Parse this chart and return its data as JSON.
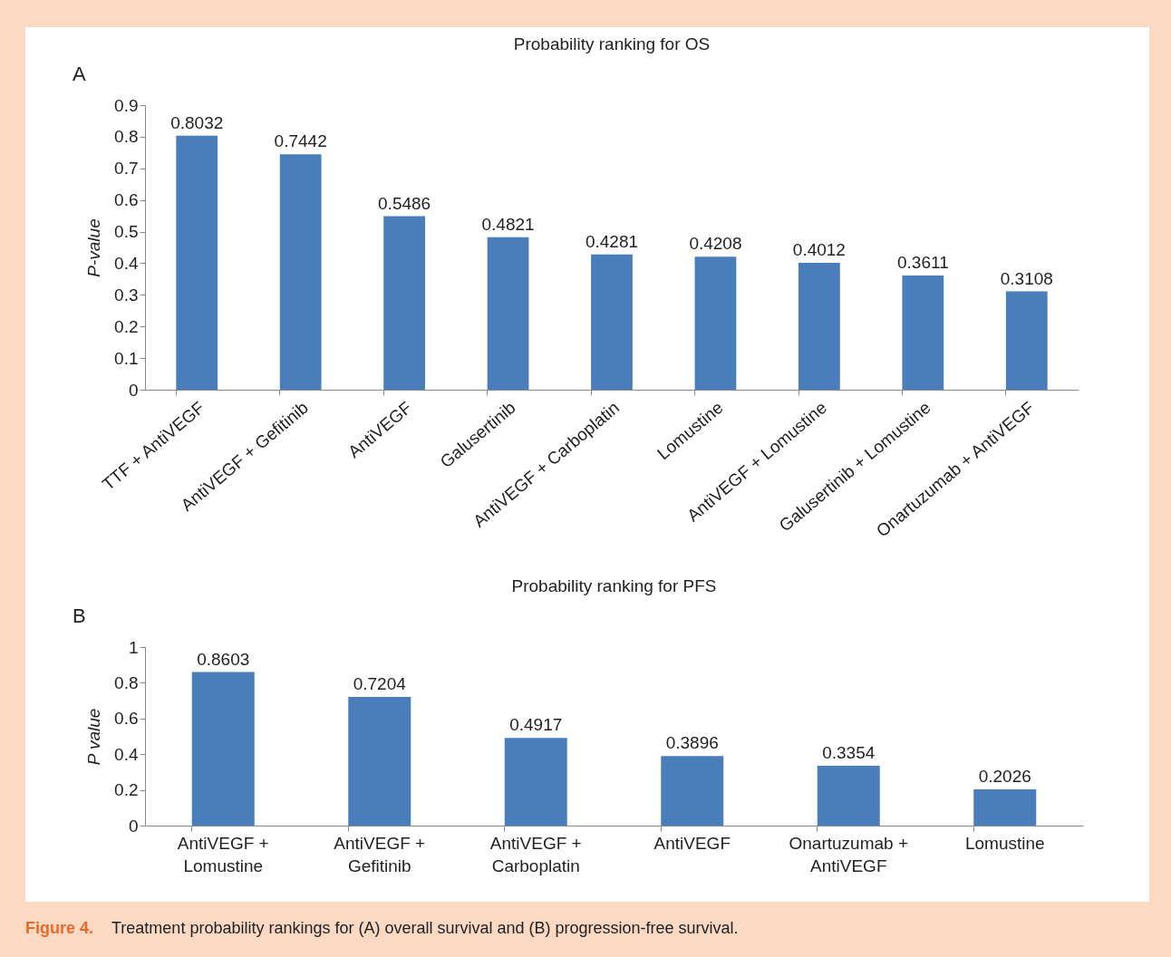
{
  "chart_data": [
    {
      "type": "bar",
      "title": "Probability ranking for OS",
      "ylabel": "P-value",
      "annotations": [
        "A"
      ],
      "categories": [
        "TTF + AntiVEGF",
        "AntiVEGF + Gefitinib",
        "AntiVEGF",
        "Galusertinib",
        "AntiVEGF + Carboplatin",
        "Lomustine",
        "AntiVEGF + Lomustine",
        "Galusertinib + Lomustine",
        "Onartuzumab + AntiVEGF"
      ],
      "values": [
        0.8032,
        0.7442,
        0.5486,
        0.4821,
        0.4281,
        0.4208,
        0.4012,
        0.3611,
        0.3108
      ],
      "color": "#4a7ebb",
      "ylim": [
        0,
        0.9
      ],
      "yticks": [
        0,
        0.1,
        0.2,
        0.3,
        0.4,
        0.5,
        0.6,
        0.7,
        0.8,
        0.9
      ],
      "grid": false,
      "data_labels": true
    },
    {
      "type": "bar",
      "title": "Probability ranking for PFS",
      "ylabel": "P value",
      "annotations": [
        "B",
        "Figure 4.",
        "Treatment probability rankings for (A) overall survival and (B) progression-free survival."
      ],
      "categories": [
        "AntiVEGF + Lomustine",
        "AntiVEGF + Gefitinib",
        "AntiVEGF + Carboplatin",
        "AntiVEGF",
        "Onartuzumab + AntiVEGF",
        "Lomustine"
      ],
      "values": [
        0.8603,
        0.7204,
        0.4917,
        0.3896,
        0.3354,
        0.2026
      ],
      "color": "#4a7ebb",
      "ylim": [
        0,
        1
      ],
      "yticks": [
        0,
        0.2,
        0.4,
        0.6,
        0.8,
        1
      ],
      "grid": false,
      "data_labels": true
    }
  ]
}
